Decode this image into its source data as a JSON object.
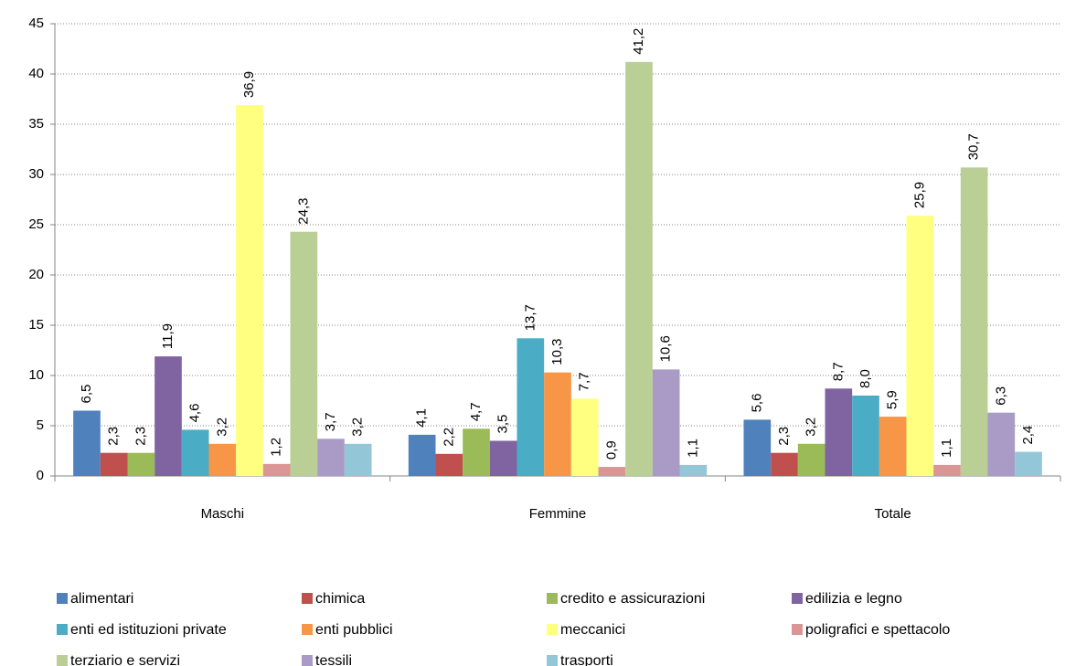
{
  "chart_data": {
    "type": "bar",
    "categories": [
      "Maschi",
      "Femmine",
      "Totale"
    ],
    "ylim": [
      0,
      45
    ],
    "yticks": [
      0,
      5,
      10,
      15,
      20,
      25,
      30,
      35,
      40,
      45
    ],
    "grid": true,
    "legend": "bottom",
    "series": [
      {
        "name": "alimentari",
        "color": "#4f81bd",
        "values": [
          6.5,
          4.1,
          5.6
        ],
        "value_labels": [
          "6,5",
          "4,1",
          "5,6"
        ]
      },
      {
        "name": "chimica",
        "color": "#c0504d",
        "values": [
          2.3,
          2.2,
          2.3
        ],
        "value_labels": [
          "2,3",
          "2,2",
          "2,3"
        ]
      },
      {
        "name": "credito e assicurazioni",
        "color": "#9bbb59",
        "values": [
          2.3,
          4.7,
          3.2
        ],
        "value_labels": [
          "2,3",
          "4,7",
          "3,2"
        ]
      },
      {
        "name": "edilizia e legno",
        "color": "#8064a2",
        "values": [
          11.9,
          3.5,
          8.7
        ],
        "value_labels": [
          "11,9",
          "3,5",
          "8,7"
        ]
      },
      {
        "name": "enti ed istituzioni private",
        "color": "#4bacc6",
        "values": [
          4.6,
          13.7,
          8.0
        ],
        "value_labels": [
          "4,6",
          "13,7",
          "8,0"
        ]
      },
      {
        "name": "enti pubblici",
        "color": "#f79646",
        "values": [
          3.2,
          10.3,
          5.9
        ],
        "value_labels": [
          "3,2",
          "10,3",
          "5,9"
        ]
      },
      {
        "name": "meccanici",
        "color": "#ffff80",
        "values": [
          36.9,
          7.7,
          25.9
        ],
        "value_labels": [
          "36,9",
          "7,7",
          "25,9"
        ]
      },
      {
        "name": "poligrafici e spettacolo",
        "color": "#d99694",
        "values": [
          1.2,
          0.9,
          1.1
        ],
        "value_labels": [
          "1,2",
          "0,9",
          "1,1"
        ]
      },
      {
        "name": "terziario e servizi",
        "color": "#b9cf96",
        "values": [
          24.3,
          41.2,
          30.7
        ],
        "value_labels": [
          "24,3",
          "41,2",
          "30,7"
        ]
      },
      {
        "name": "tessili",
        "color": "#a99bc5",
        "values": [
          3.7,
          10.6,
          6.3
        ],
        "value_labels": [
          "3,7",
          "10,6",
          "6,3"
        ]
      },
      {
        "name": "trasporti",
        "color": "#93c6d7",
        "values": [
          3.2,
          1.1,
          2.4
        ],
        "value_labels": [
          "3,2",
          "1,1",
          "2,4"
        ]
      }
    ]
  }
}
